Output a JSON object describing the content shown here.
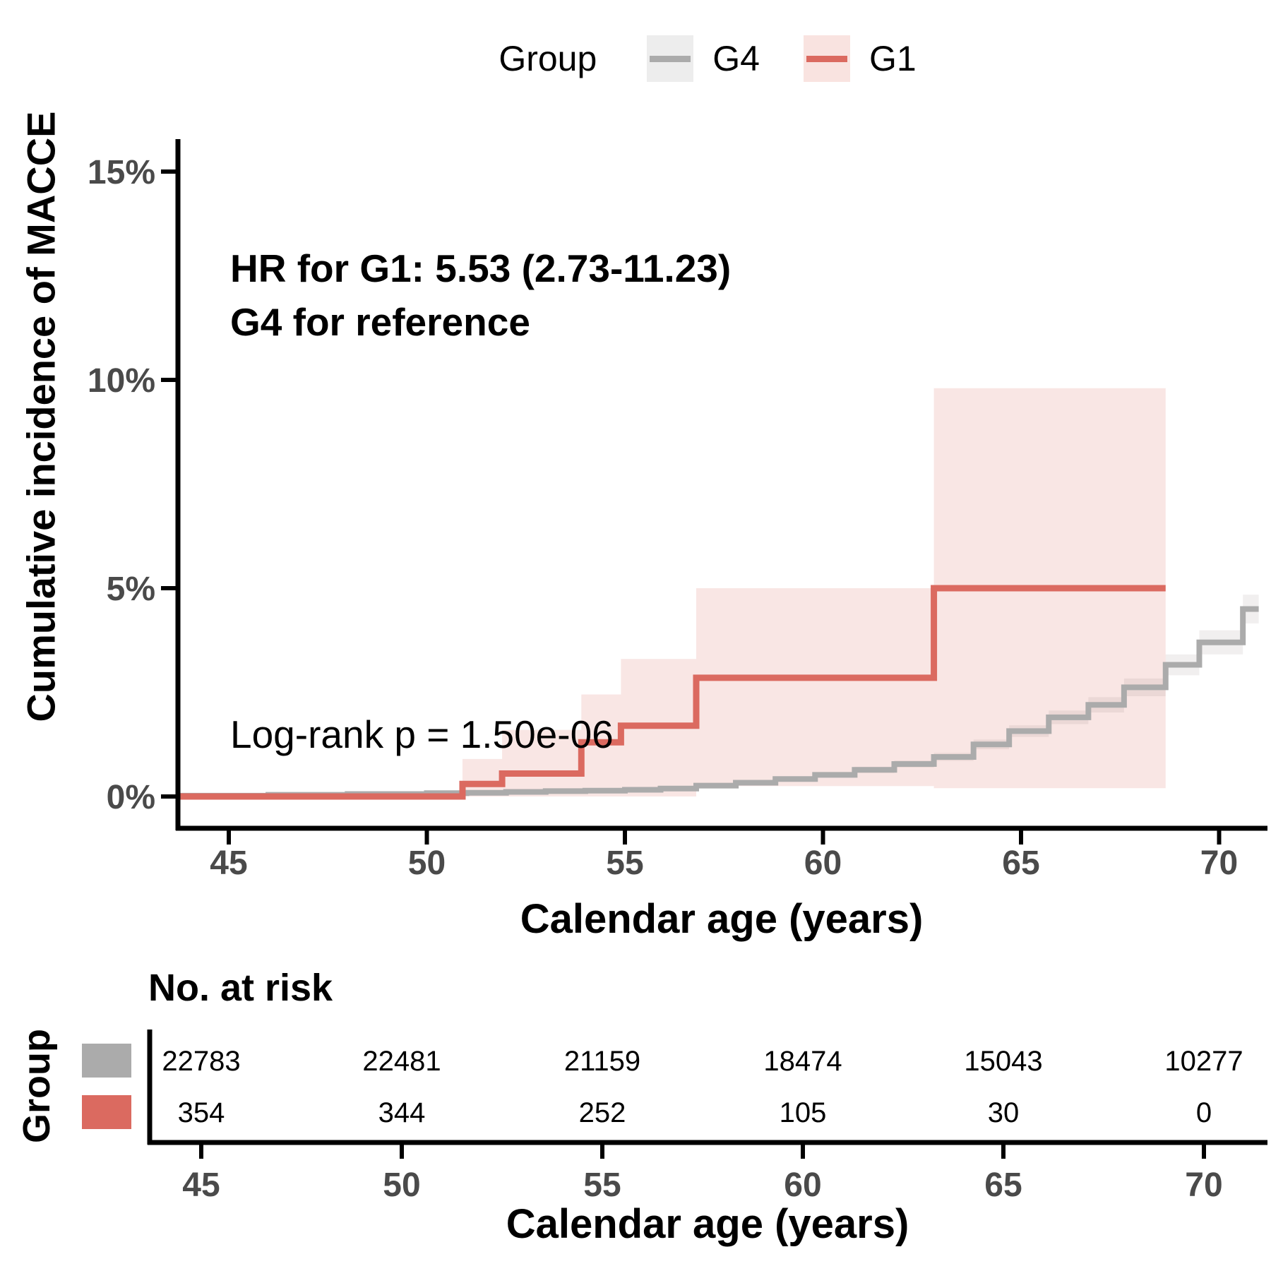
{
  "legend": {
    "title": "Group",
    "items": [
      {
        "label": "G4",
        "line_color": "#ABABAB",
        "key_bg": "#EDEDED"
      },
      {
        "label": "G1",
        "line_color": "#DB6A60",
        "key_bg": "#F9E3E0"
      }
    ]
  },
  "chart_data": {
    "type": "line",
    "subtype": "cumulative-incidence-step-curves-with-confidence-bands",
    "title": "",
    "xlabel": "Calendar age (years)",
    "ylabel": "Cumulative incidence of MACCE",
    "x_ticks": [
      45,
      50,
      55,
      60,
      65,
      70
    ],
    "y_ticks": [
      {
        "value": 0,
        "label": "0%"
      },
      {
        "value": 5,
        "label": "5%"
      },
      {
        "value": 10,
        "label": "10%"
      },
      {
        "value": 15,
        "label": "15%"
      }
    ],
    "xlim": [
      43.7,
      71.3
    ],
    "ylim_pct": [
      -0.8,
      16.5
    ],
    "grid": false,
    "legend_position": "top",
    "hr_annotation": "HR for G1: 5.53 (2.73-11.23)",
    "reference_annotation": "G4 for reference",
    "logrank_annotation": "Log-rank p = 1.50e-06",
    "series": [
      {
        "name": "G4",
        "color": "#ABABAB",
        "band_color": "rgba(120,100,100,0.10)",
        "line_width": 8,
        "x_end": 71.0,
        "steps": [
          [
            43.7,
            0.02
          ],
          [
            46,
            0.04
          ],
          [
            48,
            0.06
          ],
          [
            50,
            0.08
          ],
          [
            51,
            0.09
          ],
          [
            52,
            0.11
          ],
          [
            53,
            0.13
          ],
          [
            54,
            0.14
          ],
          [
            55,
            0.16
          ],
          [
            55.9,
            0.19
          ],
          [
            56.8,
            0.26
          ],
          [
            57.8,
            0.33
          ],
          [
            58.8,
            0.42
          ],
          [
            59.8,
            0.52
          ],
          [
            60.8,
            0.64
          ],
          [
            61.8,
            0.78
          ],
          [
            62.8,
            0.95
          ],
          [
            63.8,
            1.25
          ],
          [
            64.7,
            1.57
          ],
          [
            65.7,
            1.9
          ],
          [
            66.7,
            2.2
          ],
          [
            67.6,
            2.62
          ],
          [
            68.65,
            3.16
          ],
          [
            69.5,
            3.7
          ],
          [
            70.6,
            4.5
          ]
        ],
        "band_halfwidth_rule": {
          "base": 0.03,
          "slope": 0.07
        }
      },
      {
        "name": "G1",
        "color": "#DB6A60",
        "band_color": "rgba(219,106,96,0.17)",
        "line_width": 9,
        "x_end": 68.65,
        "steps": [
          [
            43.7,
            0
          ],
          [
            50.9,
            0.3
          ],
          [
            51.9,
            0.55
          ],
          [
            53.9,
            1.3
          ],
          [
            54.9,
            1.7
          ],
          [
            56.8,
            2.85
          ],
          [
            62.8,
            5.0
          ]
        ],
        "ci_segments": [
          [
            50.9,
            51.9,
            0,
            0.9
          ],
          [
            51.9,
            53.9,
            0,
            1.6
          ],
          [
            53.9,
            54.9,
            0,
            2.45
          ],
          [
            54.9,
            56.8,
            0,
            3.3
          ],
          [
            56.8,
            62.8,
            0.25,
            5.0
          ],
          [
            62.8,
            68.65,
            0.2,
            9.8
          ]
        ]
      }
    ]
  },
  "risk_table": {
    "title": "No. at risk",
    "row_axis_title": "Group",
    "x_axis_title": "Calendar age (years)",
    "x_ticks": [
      45,
      50,
      55,
      60,
      65,
      70
    ],
    "rows": [
      {
        "group": "G4",
        "color": "#ABABAB",
        "counts": [
          22783,
          22481,
          21159,
          18474,
          15043,
          10277
        ]
      },
      {
        "group": "G1",
        "color": "#DB6A60",
        "counts": [
          354,
          344,
          252,
          105,
          30,
          0
        ]
      }
    ]
  }
}
